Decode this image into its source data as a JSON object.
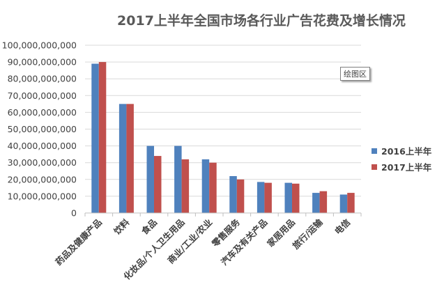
{
  "tooltip": "绘图区",
  "chart_data": {
    "type": "bar",
    "title": "2017上半年全国市场各行业广告花费及增长情况",
    "categories": [
      "药品及健康产品",
      "饮料",
      "食品",
      "化妆品/个人卫生用品",
      "商业/工业/农业",
      "零售服务",
      "汽车及有关产品",
      "家居用品",
      "旅行/运输",
      "电信"
    ],
    "series": [
      {
        "name": "2016上半年",
        "color": "#4F81BD",
        "values": [
          89000000000,
          65000000000,
          40000000000,
          40000000000,
          32000000000,
          22000000000,
          18500000000,
          18000000000,
          12000000000,
          11000000000
        ]
      },
      {
        "name": "2017上半年",
        "color": "#C0504D",
        "values": [
          90000000000,
          65000000000,
          34000000000,
          32000000000,
          30000000000,
          20000000000,
          18000000000,
          17500000000,
          13000000000,
          12000000000
        ]
      }
    ],
    "ylim": [
      0,
      100000000000
    ],
    "ytick_step": 10000000000,
    "yticks": [
      "0",
      "10,000,000,000",
      "20,000,000,000",
      "30,000,000,000",
      "40,000,000,000",
      "50,000,000,000",
      "60,000,000,000",
      "70,000,000,000",
      "80,000,000,000",
      "90,000,000,000",
      "100,000,000,000"
    ],
    "grid": true,
    "legend_position": "right",
    "gridline_color": "#D9D9D9",
    "axis_color": "#BFBFBF"
  }
}
